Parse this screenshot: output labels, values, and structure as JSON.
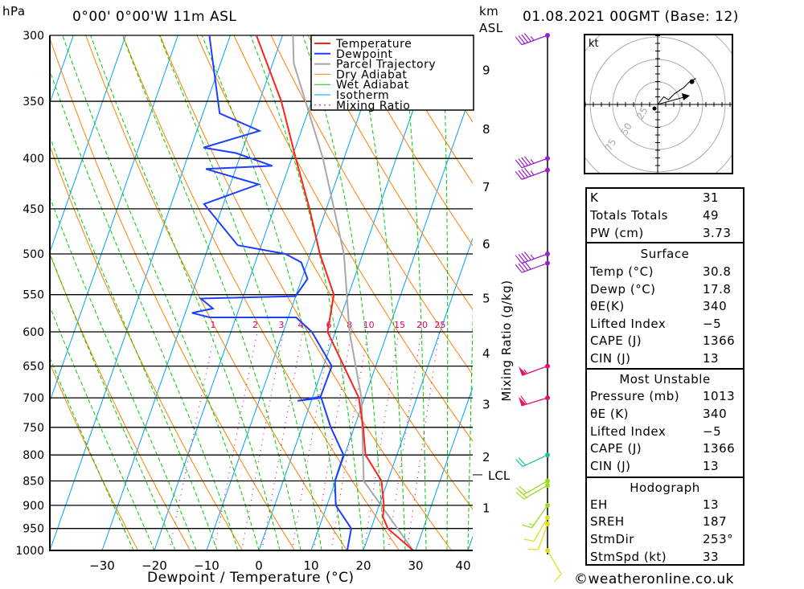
{
  "header": {
    "pressure_unit": "hPa",
    "location": "0°00' 0°00'W 11m ASL",
    "height_unit": "km",
    "height_ref": "ASL",
    "datetime": "01.08.2021 00GMT (Base: 12)"
  },
  "footer": {
    "credit": "©weatheronline.co.uk"
  },
  "colors": {
    "temperature": "#ff2020",
    "dewpoint": "#1f3fff",
    "parcel": "#a8a8a8",
    "dry_adiabat": "#ff8000",
    "wet_adiabat": "#00cc00",
    "isotherm": "#00a0ff",
    "mixing_ratio": "#e0006a"
  },
  "chart_data": {
    "type": "line",
    "subtype": "skew-t log-p",
    "xlabel": "Dewpoint / Temperature (°C)",
    "ylabel": "hPa",
    "right_label": "Mixing Ratio (g/kg)",
    "xlim": [
      -40,
      40
    ],
    "ylim": [
      1000,
      300
    ],
    "x_ticks": [
      -30,
      -20,
      -10,
      0,
      10,
      20,
      30,
      40
    ],
    "y_ticks": [
      300,
      350,
      400,
      450,
      500,
      550,
      600,
      650,
      700,
      750,
      800,
      850,
      900,
      950,
      1000
    ],
    "grid": true,
    "legend_position": "top-right",
    "legend": [
      "Temperature",
      "Dewpoint",
      "Parcel Trajectory",
      "Dry Adiabat",
      "Wet Adiabat",
      "Isotherm",
      "Mixing Ratio"
    ],
    "mixing_ratio_labels": [
      1,
      2,
      3,
      4,
      6,
      8,
      10,
      15,
      20,
      25
    ],
    "height_km": [
      {
        "km": "9",
        "p": 325
      },
      {
        "km": "8",
        "p": 373
      },
      {
        "km": "7",
        "p": 427
      },
      {
        "km": "6",
        "p": 488
      },
      {
        "km": "5",
        "p": 554
      },
      {
        "km": "4",
        "p": 630
      },
      {
        "km": "3",
        "p": 710
      },
      {
        "km": "2",
        "p": 803
      },
      {
        "km": "1",
        "p": 904
      }
    ],
    "lcl": {
      "label": "LCL",
      "p": 838
    },
    "series": [
      {
        "name": "Temperature",
        "points": [
          [
            1000,
            29.5
          ],
          [
            950,
            23.2
          ],
          [
            925,
            21.5
          ],
          [
            900,
            20.9
          ],
          [
            850,
            18.8
          ],
          [
            800,
            14.0
          ],
          [
            750,
            11.7
          ],
          [
            700,
            8.9
          ],
          [
            650,
            3.9
          ],
          [
            600,
            -1.5
          ],
          [
            550,
            -2.8
          ],
          [
            500,
            -8.2
          ],
          [
            450,
            -13.2
          ],
          [
            400,
            -19.2
          ],
          [
            350,
            -25.8
          ],
          [
            300,
            -35.0
          ]
        ]
      },
      {
        "name": "Dewpoint",
        "points": [
          [
            1000,
            16.9
          ],
          [
            950,
            16.2
          ],
          [
            900,
            11.7
          ],
          [
            850,
            9.9
          ],
          [
            800,
            9.8
          ],
          [
            750,
            5.5
          ],
          [
            700,
            1.7
          ],
          [
            705,
            -2.6
          ],
          [
            698,
            1.5
          ],
          [
            650,
            1.6
          ],
          [
            600,
            -4.5
          ],
          [
            580,
            -8.5
          ],
          [
            580,
            -25
          ],
          [
            574,
            -28.7
          ],
          [
            568,
            -25
          ],
          [
            555,
            -28
          ],
          [
            552,
            -10
          ],
          [
            530,
            -8.9
          ],
          [
            510,
            -11.2
          ],
          [
            500,
            -14.8
          ],
          [
            490,
            -24.5
          ],
          [
            445,
            -33.7
          ],
          [
            425,
            -24.6
          ],
          [
            410,
            -35.7
          ],
          [
            407,
            -23.2
          ],
          [
            395,
            -31
          ],
          [
            390,
            -37.6
          ],
          [
            375,
            -28
          ],
          [
            360,
            -36.8
          ],
          [
            300,
            -44
          ]
        ]
      },
      {
        "name": "Parcel Trajectory",
        "points": [
          [
            1000,
            29.5
          ],
          [
            850,
            15.4
          ],
          [
            700,
            9.4
          ],
          [
            600,
            2.7
          ],
          [
            500,
            -3.6
          ],
          [
            400,
            -14.0
          ],
          [
            320,
            -26
          ],
          [
            300,
            -28
          ]
        ]
      }
    ],
    "wind_barbs": [
      {
        "p": 300,
        "dir": 250,
        "kt": 45,
        "color": "#9b1fd0"
      },
      {
        "p": 400,
        "dir": 250,
        "kt": 45,
        "color": "#9b1fd0"
      },
      {
        "p": 411,
        "dir": 250,
        "kt": 45,
        "color": "#9b1fd0"
      },
      {
        "p": 500,
        "dir": 250,
        "kt": 45,
        "color": "#9b1fd0"
      },
      {
        "p": 511,
        "dir": 250,
        "kt": 40,
        "color": "#9b1fd0"
      },
      {
        "p": 650,
        "dir": 250,
        "kt": 55,
        "color": "#e8106a"
      },
      {
        "p": 700,
        "dir": 253,
        "kt": 60,
        "color": "#e8106a"
      },
      {
        "p": 800,
        "dir": 245,
        "kt": 20,
        "color": "#1fc0a0"
      },
      {
        "p": 850,
        "dir": 240,
        "kt": 20,
        "color": "#99dd22"
      },
      {
        "p": 859,
        "dir": 240,
        "kt": 20,
        "color": "#99dd22"
      },
      {
        "p": 900,
        "dir": 215,
        "kt": 15,
        "color": "#99dd22"
      },
      {
        "p": 926,
        "dir": 210,
        "kt": 10,
        "color": "#e0e020"
      },
      {
        "p": 940,
        "dir": 200,
        "kt": 10,
        "color": "#e0e020"
      },
      {
        "p": 1000,
        "dir": 150,
        "kt": 10,
        "color": "#e0e020"
      }
    ],
    "hodograph": {
      "unit": "kt",
      "ring_labels": [
        "25",
        "50",
        "75"
      ],
      "points": [
        [
          0,
          0
        ],
        [
          8,
          10
        ],
        [
          14,
          6
        ],
        [
          22,
          14
        ],
        [
          34,
          22
        ],
        [
          42,
          30
        ],
        [
          50,
          34
        ]
      ],
      "storm_motion": {
        "dir": 253,
        "kt": 33
      }
    }
  },
  "indices": {
    "rows": [
      {
        "label": "K",
        "value": "31"
      },
      {
        "label": "Totals Totals",
        "value": "49"
      },
      {
        "label": "PW (cm)",
        "value": "3.73"
      }
    ]
  },
  "surface": {
    "title": "Surface",
    "rows": [
      {
        "label": "Temp (°C)",
        "value": "30.8"
      },
      {
        "label": "Dewp (°C)",
        "value": "17.8"
      },
      {
        "label": "θE(K)",
        "value": "340"
      },
      {
        "label": "Lifted Index",
        "value": "−5"
      },
      {
        "label": "CAPE (J)",
        "value": "1366"
      },
      {
        "label": "CIN (J)",
        "value": "13"
      }
    ]
  },
  "most_unstable": {
    "title": "Most Unstable",
    "rows": [
      {
        "label": "Pressure (mb)",
        "value": "1013"
      },
      {
        "label": "θE (K)",
        "value": "340"
      },
      {
        "label": "Lifted Index",
        "value": "−5"
      },
      {
        "label": "CAPE (J)",
        "value": "1366"
      },
      {
        "label": "CIN (J)",
        "value": "13"
      }
    ]
  },
  "hodograph_table": {
    "title": "Hodograph",
    "rows": [
      {
        "label": "EH",
        "value": "13"
      },
      {
        "label": "SREH",
        "value": "187"
      },
      {
        "label": "StmDir",
        "value": "253°"
      },
      {
        "label": "StmSpd (kt)",
        "value": "33"
      }
    ]
  }
}
